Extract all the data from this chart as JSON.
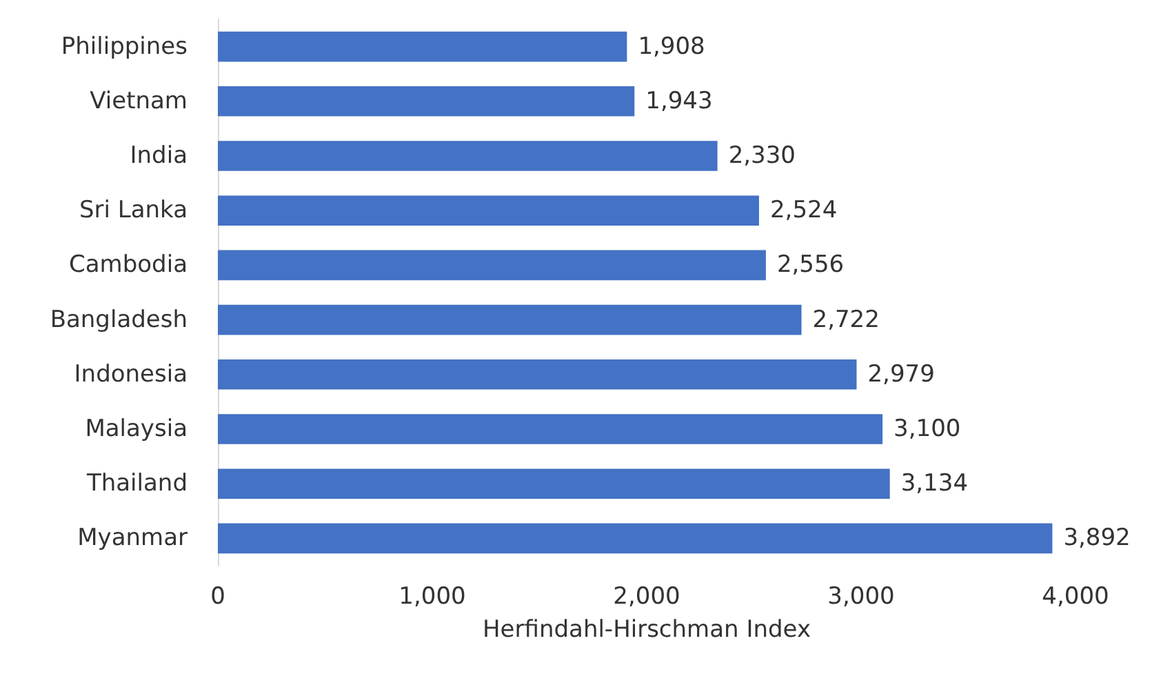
{
  "chart_data": {
    "type": "bar",
    "orientation": "horizontal",
    "xlabel": "Herfindahl-Hirschman Index",
    "categories": [
      "Philippines",
      "Vietnam",
      "India",
      "Sri Lanka",
      "Cambodia",
      "Bangladesh",
      "Indonesia",
      "Malaysia",
      "Thailand",
      "Myanmar"
    ],
    "values": [
      1908,
      1943,
      2330,
      2524,
      2556,
      2722,
      2979,
      3100,
      3134,
      3892
    ],
    "value_labels": [
      "1,908",
      "1,943",
      "2,330",
      "2,524",
      "2,556",
      "2,722",
      "2,979",
      "3,100",
      "3,134",
      "3,892"
    ],
    "color": "#4472c4",
    "xlim": [
      0,
      4000
    ],
    "xticks": [
      {
        "value": 0,
        "label": "0"
      },
      {
        "value": 1000,
        "label": "1,000"
      },
      {
        "value": 2000,
        "label": "2,000"
      },
      {
        "value": 3000,
        "label": "3,000"
      },
      {
        "value": 4000,
        "label": "4,000"
      }
    ],
    "tick_labels": "xy"
  }
}
